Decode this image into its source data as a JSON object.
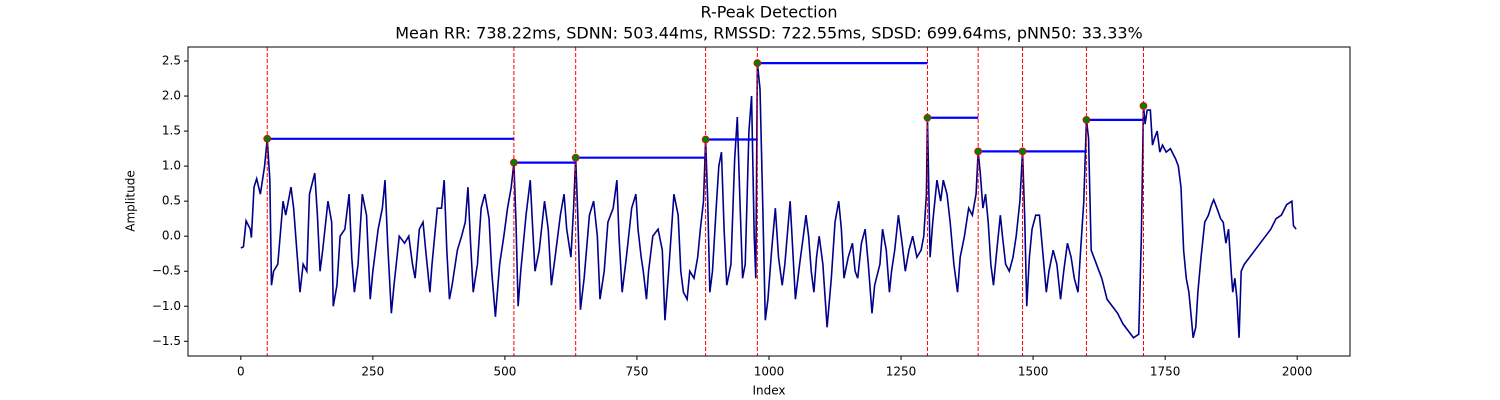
{
  "chart_data": {
    "type": "line",
    "title": "R-Peak Detection",
    "subtitle": "Mean RR: 738.22ms, SDNN: 503.44ms, RMSSD: 722.55ms, SDSD: 699.64ms, pNN50: 33.33%",
    "xlabel": "Index",
    "ylabel": "Amplitude",
    "xlim": [
      -100,
      2100
    ],
    "ylim": [
      -1.71,
      2.7
    ],
    "xticks": [
      0,
      250,
      500,
      750,
      1000,
      1250,
      1500,
      1750,
      2000
    ],
    "yticks": [
      {
        "value": -1.5,
        "label": "−1.5"
      },
      {
        "value": -1.0,
        "label": "−1.0"
      },
      {
        "value": -0.5,
        "label": "−0.5"
      },
      {
        "value": 0,
        "label": "0.0"
      },
      0.5,
      {
        "value": 1,
        "label": "1.0"
      },
      1.5,
      {
        "value": 2,
        "label": "2.0"
      },
      2.5
    ],
    "color": "#00008b",
    "peak_color": "#008000",
    "peak_edge_color": "#ff0000",
    "marker_line_color": "#ff0000",
    "interval_color": "#0000ff",
    "x": [
      0,
      5,
      10,
      18,
      20,
      25,
      30,
      37,
      45,
      50,
      55,
      58,
      62,
      70,
      80,
      85,
      95,
      100,
      107,
      112,
      118,
      125,
      130,
      140,
      145,
      150,
      155,
      165,
      172,
      175,
      182,
      188,
      197,
      205,
      210,
      215,
      222,
      230,
      238,
      245,
      250,
      260,
      268,
      273,
      278,
      285,
      290,
      300,
      310,
      318,
      325,
      330,
      338,
      345,
      350,
      358,
      362,
      372,
      380,
      385,
      390,
      395,
      400,
      410,
      418,
      425,
      430,
      435,
      440,
      448,
      455,
      462,
      470,
      475,
      482,
      490,
      498,
      505,
      512,
      517,
      521,
      525,
      530,
      540,
      548,
      552,
      557,
      565,
      575,
      582,
      588,
      595,
      605,
      612,
      617,
      625,
      630,
      634,
      638,
      643,
      650,
      660,
      668,
      675,
      680,
      688,
      695,
      705,
      712,
      716,
      722,
      730,
      740,
      748,
      752,
      758,
      762,
      768,
      772,
      780,
      790,
      798,
      803,
      810,
      820,
      828,
      833,
      838,
      845,
      850,
      858,
      865,
      870,
      876,
      880,
      884,
      888,
      893,
      900,
      905,
      910,
      915,
      920,
      928,
      935,
      940,
      945,
      950,
      955,
      962,
      967,
      972,
      975,
      978,
      983,
      988,
      993,
      998,
      1005,
      1012,
      1018,
      1025,
      1030,
      1040,
      1045,
      1050,
      1058,
      1065,
      1070,
      1075,
      1080,
      1085,
      1090,
      1095,
      1102,
      1110,
      1118,
      1125,
      1132,
      1137,
      1142,
      1150,
      1158,
      1163,
      1168,
      1175,
      1182,
      1188,
      1195,
      1200,
      1210,
      1215,
      1222,
      1228,
      1232,
      1238,
      1245,
      1252,
      1258,
      1265,
      1272,
      1280,
      1288,
      1293,
      1298,
      1300,
      1303,
      1305,
      1310,
      1318,
      1325,
      1330,
      1337,
      1343,
      1350,
      1357,
      1362,
      1370,
      1378,
      1385,
      1392,
      1396,
      1400,
      1405,
      1410,
      1415,
      1420,
      1425,
      1430,
      1438,
      1442,
      1448,
      1455,
      1462,
      1468,
      1475,
      1480,
      1484,
      1488,
      1493,
      1498,
      1505,
      1512,
      1518,
      1525,
      1530,
      1538,
      1545,
      1552,
      1558,
      1565,
      1572,
      1578,
      1585,
      1590,
      1596,
      1601,
      1605,
      1610,
      1615,
      1620,
      1630,
      1640,
      1650,
      1660,
      1670,
      1680,
      1690,
      1700,
      1705,
      1709,
      1712,
      1716,
      1722,
      1726,
      1730,
      1735,
      1740,
      1745,
      1752,
      1760,
      1770,
      1775,
      1780,
      1785,
      1790,
      1795,
      1800,
      1803,
      1808,
      1812,
      1818,
      1825,
      1832,
      1838,
      1842,
      1848,
      1855,
      1860,
      1865,
      1870,
      1875,
      1878,
      1882,
      1886,
      1890,
      1894,
      1900,
      1910,
      1920,
      1930,
      1940,
      1950,
      1960,
      1970,
      1980,
      1990,
      1993,
      1998
    ],
    "values": [
      -0.17,
      -0.15,
      0.22,
      0.1,
      -0.02,
      0.7,
      0.82,
      0.6,
      1.0,
      1.39,
      0.8,
      -0.7,
      -0.5,
      -0.4,
      0.5,
      0.3,
      0.7,
      0.4,
      -0.3,
      -0.8,
      -0.4,
      -0.5,
      0.6,
      0.9,
      0.3,
      -0.5,
      -0.2,
      0.5,
      0.2,
      -1.0,
      -0.7,
      0.0,
      0.1,
      0.6,
      -0.3,
      -0.8,
      -0.4,
      0.6,
      0.3,
      -0.9,
      -0.5,
      0.1,
      0.4,
      0.8,
      -0.1,
      -1.1,
      -0.7,
      0.0,
      -0.1,
      0.0,
      -0.4,
      -0.6,
      0.1,
      0.2,
      -0.2,
      -0.8,
      -0.4,
      0.4,
      0.4,
      0.8,
      -0.2,
      -0.9,
      -0.7,
      -0.2,
      0.0,
      0.2,
      0.7,
      -0.1,
      -0.8,
      -0.4,
      0.4,
      0.6,
      0.25,
      -0.5,
      -1.15,
      -0.4,
      0.0,
      0.4,
      0.7,
      1.05,
      0.2,
      -1.0,
      -0.5,
      0.3,
      0.8,
      0.2,
      -0.5,
      -0.2,
      0.5,
      0.1,
      -0.7,
      -0.3,
      0.3,
      0.6,
      0.1,
      -0.3,
      0.4,
      1.12,
      0.3,
      -1.05,
      -0.6,
      0.3,
      0.5,
      0.0,
      -0.9,
      -0.5,
      0.2,
      0.4,
      0.8,
      0.0,
      -0.8,
      -0.3,
      0.4,
      0.6,
      0.1,
      -0.3,
      -0.5,
      -0.9,
      -0.5,
      0.0,
      0.1,
      -0.2,
      -1.2,
      -0.5,
      0.6,
      0.3,
      -0.5,
      -0.8,
      -0.9,
      -0.5,
      -0.6,
      -0.3,
      0.1,
      0.5,
      1.38,
      0.5,
      -0.8,
      -0.5,
      0.4,
      1.0,
      1.2,
      0.1,
      -0.7,
      -0.4,
      1.1,
      1.7,
      0.5,
      -0.6,
      -0.4,
      1.5,
      2.0,
      0.0,
      -0.6,
      2.47,
      2.1,
      0.5,
      -1.2,
      -0.9,
      -0.2,
      0.4,
      -0.3,
      -0.7,
      -0.4,
      0.5,
      -0.2,
      -0.9,
      -0.4,
      0.0,
      0.3,
      0.0,
      -0.5,
      -0.8,
      -0.3,
      0.0,
      -0.4,
      -1.3,
      -0.6,
      0.2,
      0.5,
      0.1,
      -0.6,
      -0.3,
      -0.1,
      -0.5,
      -0.6,
      -0.1,
      0.1,
      -0.4,
      -1.1,
      -0.7,
      -0.4,
      0.1,
      -0.2,
      -0.8,
      -0.5,
      -0.2,
      0.3,
      -0.1,
      -0.5,
      -0.2,
      0.0,
      -0.3,
      -0.2,
      0.0,
      0.6,
      1.69,
      0.5,
      -0.3,
      0.2,
      0.8,
      0.5,
      0.8,
      0.6,
      0.2,
      -0.4,
      -0.8,
      -0.3,
      0.0,
      0.4,
      0.3,
      0.6,
      1.21,
      0.9,
      0.4,
      0.6,
      0.2,
      -0.4,
      -0.7,
      -0.3,
      0.3,
      0.0,
      -0.4,
      -0.5,
      -0.3,
      0.0,
      0.5,
      1.21,
      0.3,
      -1.0,
      -0.3,
      0.1,
      0.3,
      0.3,
      -0.2,
      -0.8,
      -0.5,
      -0.2,
      -0.4,
      -0.9,
      -0.5,
      -0.1,
      -0.3,
      -0.6,
      -0.8,
      -0.2,
      0.5,
      1.66,
      1.4,
      -0.2,
      -0.3,
      -0.4,
      -0.6,
      -0.9,
      -1.0,
      -1.1,
      -1.25,
      -1.35,
      -1.45,
      -1.4,
      0.0,
      1.86,
      1.6,
      1.8,
      1.8,
      1.3,
      1.4,
      1.5,
      1.2,
      1.3,
      1.2,
      1.25,
      1.1,
      1.0,
      0.7,
      -0.2,
      -0.6,
      -0.8,
      -1.2,
      -1.45,
      -1.3,
      -0.8,
      -0.3,
      0.2,
      0.3,
      0.45,
      0.52,
      0.4,
      0.25,
      0.2,
      -0.1,
      0.1,
      -0.5,
      -0.8,
      -0.6,
      -0.9,
      -1.45,
      -0.5,
      -0.4,
      -0.3,
      -0.2,
      -0.1,
      0.0,
      0.1,
      0.25,
      0.3,
      0.45,
      0.5,
      0.15,
      0.1
    ],
    "peaks": {
      "x": [
        50,
        517,
        634,
        880,
        978,
        1300,
        1396,
        1480,
        1601,
        1709
      ],
      "values": [
        1.39,
        1.05,
        1.12,
        1.38,
        2.47,
        1.69,
        1.21,
        1.21,
        1.66,
        1.86
      ]
    }
  }
}
